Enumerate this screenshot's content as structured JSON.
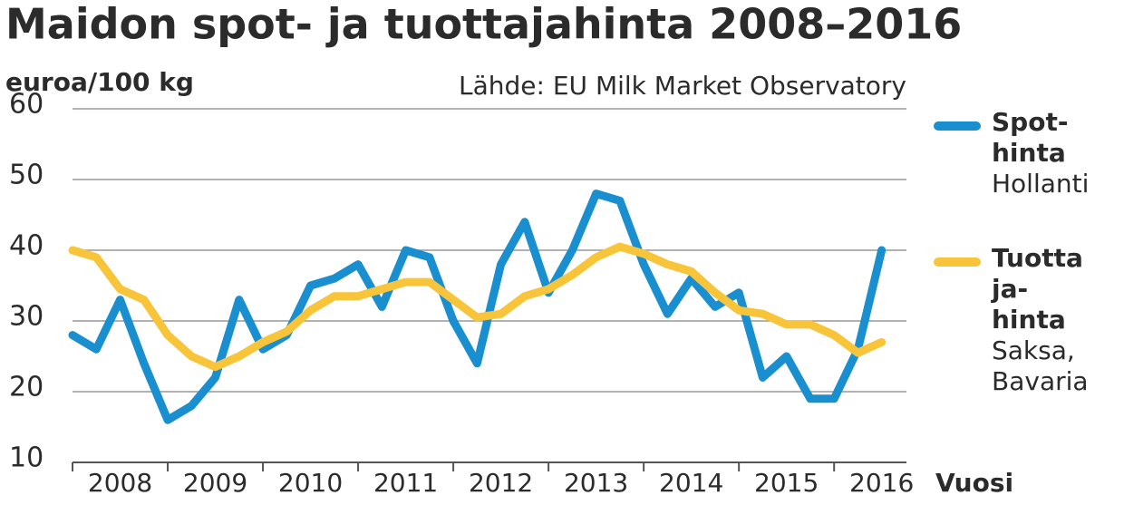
{
  "chart_data": {
    "type": "line",
    "title": "Maidon spot- ja tuottajahinta 2008–2016",
    "y_label": "euroa/100 kg",
    "source": "Lähde: EU Milk Market Observatory",
    "x_label": "Vuosi",
    "x": [
      2008,
      2008.25,
      2008.5,
      2008.75,
      2009,
      2009.25,
      2009.5,
      2009.75,
      2010,
      2010.25,
      2010.5,
      2010.75,
      2011,
      2011.25,
      2011.5,
      2011.75,
      2012,
      2012.25,
      2012.5,
      2012.75,
      2013,
      2013.25,
      2013.5,
      2013.75,
      2014,
      2014.25,
      2014.5,
      2014.75,
      2015,
      2015.25,
      2015.5,
      2015.75,
      2016,
      2016.25,
      2016.5
    ],
    "series": [
      {
        "name": "Spot-hinta",
        "detail": "Hollanti",
        "color": "#1a8fd0",
        "values": [
          28,
          26,
          33,
          24,
          16,
          18,
          22,
          33,
          26,
          28,
          35,
          36,
          38,
          32,
          40,
          39,
          30,
          24,
          38,
          44,
          34,
          40,
          48,
          47,
          38,
          31,
          36,
          32,
          34,
          22,
          25,
          19,
          19,
          26,
          40
        ]
      },
      {
        "name": "Tuottaja-hinta",
        "detail": "Saksa, Bavaria",
        "color": "#f8c43a",
        "values": [
          40,
          39,
          34.5,
          33,
          28,
          25,
          23.5,
          25,
          27,
          28.5,
          31.5,
          33.5,
          33.5,
          34.5,
          35.5,
          35.5,
          33,
          30.5,
          31,
          33.5,
          34.5,
          36.5,
          39,
          40.5,
          39.5,
          38,
          37,
          34,
          31.5,
          31,
          29.5,
          29.5,
          28,
          25.5,
          27
        ]
      }
    ],
    "xlim": [
      2008,
      2016.76
    ],
    "xticks": [
      {
        "value": 2008.5,
        "label": "2008"
      },
      {
        "value": 2009.5,
        "label": "2009"
      },
      {
        "value": 2010.5,
        "label": "2010"
      },
      {
        "value": 2011.5,
        "label": "2011"
      },
      {
        "value": 2012.5,
        "label": "2012"
      },
      {
        "value": 2013.5,
        "label": "2013"
      },
      {
        "value": 2014.5,
        "label": "2014"
      },
      {
        "value": 2015.5,
        "label": "2015"
      },
      {
        "value": 2016.5,
        "label": "2016"
      }
    ],
    "ylim": [
      10,
      60
    ],
    "yticks": [
      10,
      20,
      30,
      40,
      50,
      60
    ],
    "grid": true
  }
}
